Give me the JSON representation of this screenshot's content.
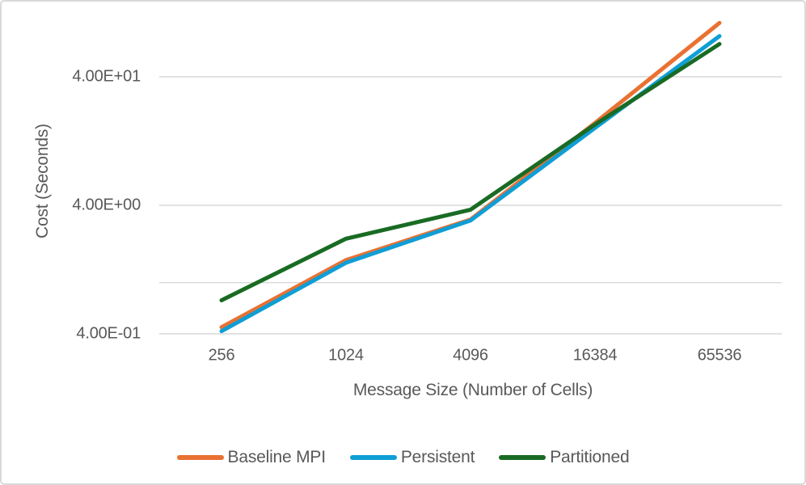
{
  "chart": {
    "y_axis_title": "Cost (Seconds)",
    "x_axis_title": "Message Size (Number of Cells)"
  },
  "chart_data": {
    "type": "line",
    "title": "",
    "xlabel": "Message Size (Number of Cells)",
    "ylabel": "Cost (Seconds)",
    "x_axis_type": "category",
    "y_axis_type": "log",
    "categories": [
      "256",
      "1024",
      "4096",
      "16384",
      "65536"
    ],
    "y_ticks": [
      {
        "value": 40,
        "label": "4.00E+01"
      },
      {
        "value": 4,
        "label": "4.00E+00"
      },
      {
        "value": 1,
        "label": ""
      },
      {
        "value": 0.4,
        "label": "4.00E-01"
      }
    ],
    "series": [
      {
        "name": "Baseline MPI",
        "color": "#E97132",
        "values": [
          0.45,
          1.5,
          3.1,
          17.5,
          105
        ]
      },
      {
        "name": "Persistent",
        "color": "#0F9ED5",
        "values": [
          0.42,
          1.43,
          3.05,
          16.0,
          83
        ]
      },
      {
        "name": "Partitioned",
        "color": "#196B24",
        "values": [
          0.73,
          2.2,
          3.7,
          17.0,
          72
        ]
      }
    ],
    "legend_position": "bottom",
    "grid_on": true,
    "grid_color": "#D9D9D9",
    "text_color": "#595959"
  }
}
